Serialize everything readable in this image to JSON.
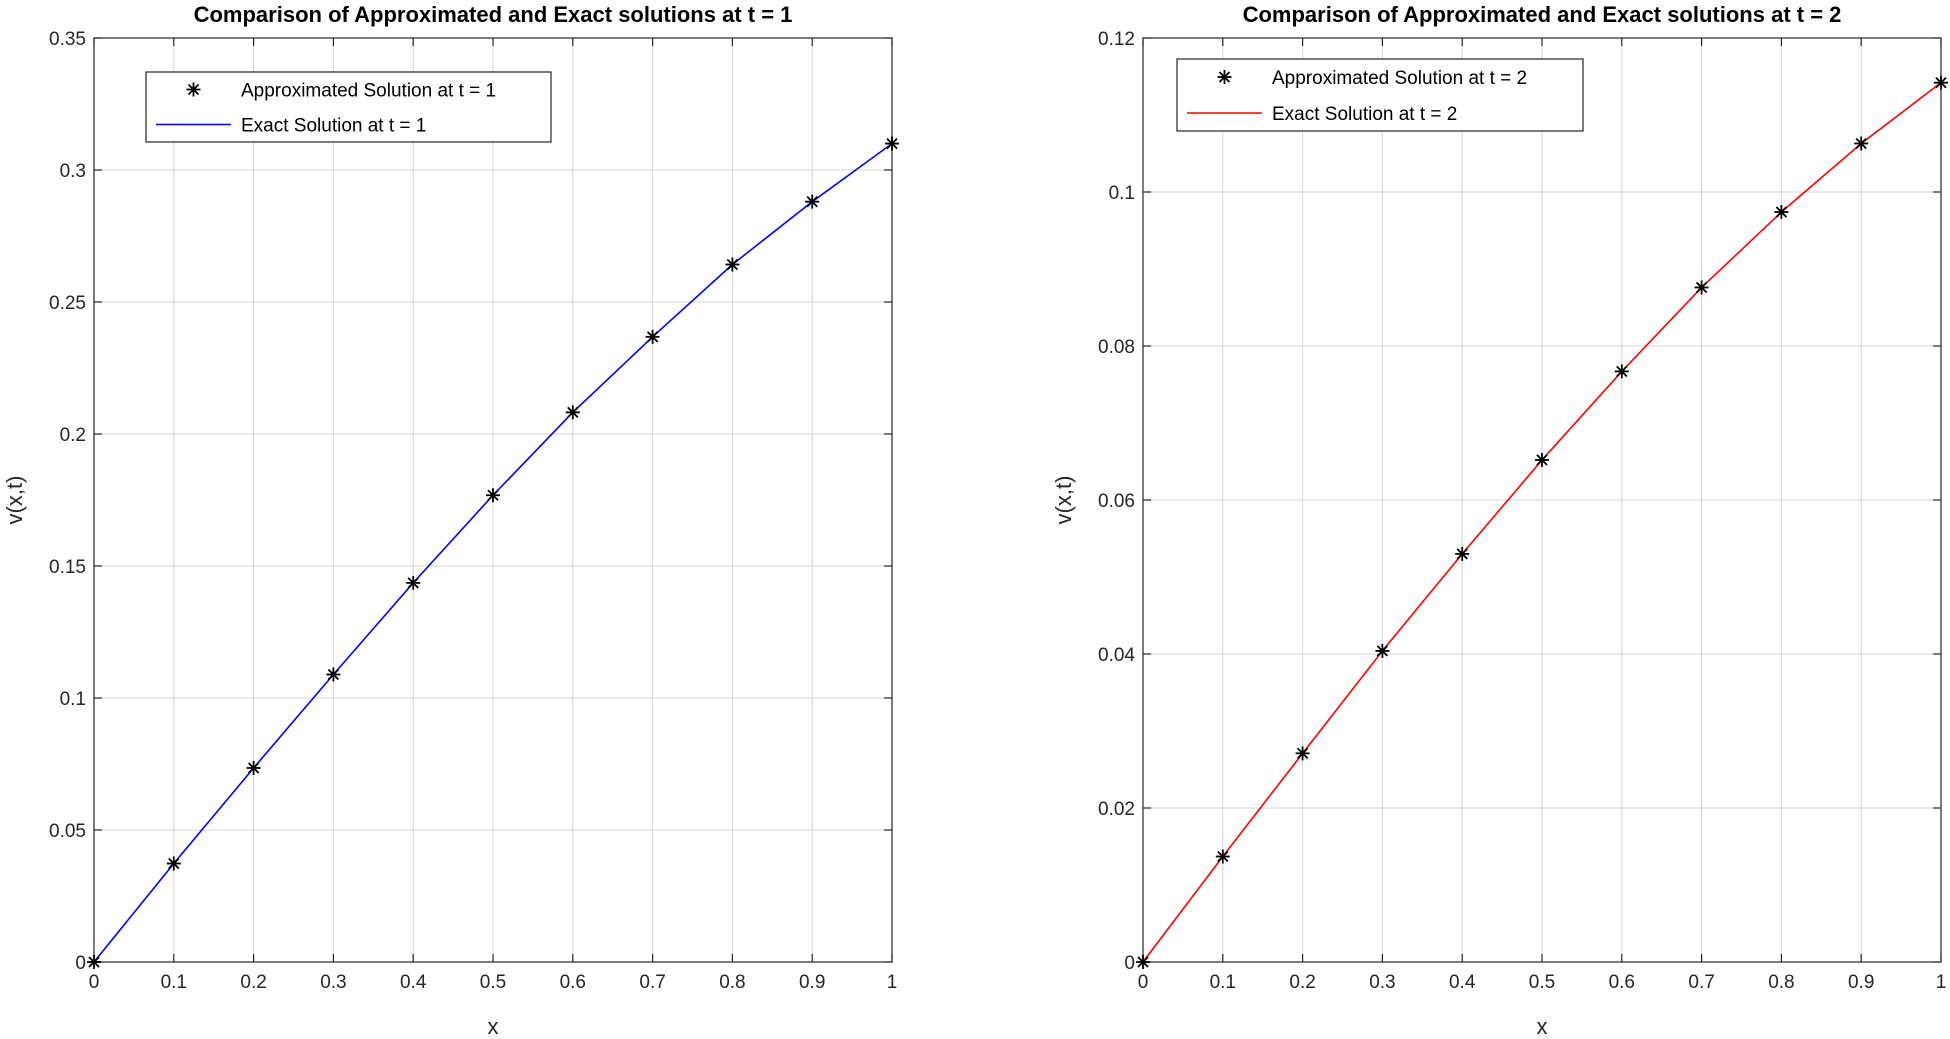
{
  "chart_data": [
    {
      "type": "line",
      "title": "Comparison of Approximated and Exact solutions at t = 1",
      "xlabel": "x",
      "ylabel": "v(x,t)",
      "xlim": [
        0,
        1
      ],
      "ylim": [
        0,
        0.35
      ],
      "xticks": [
        "0",
        "0.1",
        "0.2",
        "0.3",
        "0.4",
        "0.5",
        "0.6",
        "0.7",
        "0.8",
        "0.9",
        "1"
      ],
      "yticks": [
        "0",
        "0.05",
        "0.1",
        "0.15",
        "0.2",
        "0.25",
        "0.3",
        "0.35"
      ],
      "grid": true,
      "legend_position": "top-left",
      "series": [
        {
          "name": "Approximated Solution at t = 1",
          "style": "markers",
          "marker": "star",
          "color": "#000000",
          "x": [
            0,
            0.1,
            0.2,
            0.3,
            0.4,
            0.5,
            0.6,
            0.7,
            0.8,
            0.9,
            1.0
          ],
          "y": [
            0,
            0.0373,
            0.0735,
            0.1089,
            0.1436,
            0.1768,
            0.2082,
            0.2368,
            0.2642,
            0.288,
            0.31
          ]
        },
        {
          "name": "Exact Solution at t = 1",
          "style": "line",
          "color": "#0000ff",
          "x": [
            0,
            0.1,
            0.2,
            0.3,
            0.4,
            0.5,
            0.6,
            0.7,
            0.8,
            0.9,
            1.0
          ],
          "y": [
            0,
            0.0373,
            0.0735,
            0.1089,
            0.1436,
            0.1768,
            0.2082,
            0.2368,
            0.2642,
            0.288,
            0.31
          ]
        }
      ]
    },
    {
      "type": "line",
      "title": "Comparison of Approximated and Exact solutions at t = 2",
      "xlabel": "x",
      "ylabel": "v(x,t)",
      "xlim": [
        0,
        1
      ],
      "ylim": [
        0,
        0.12
      ],
      "xticks": [
        "0",
        "0.1",
        "0.2",
        "0.3",
        "0.4",
        "0.5",
        "0.6",
        "0.7",
        "0.8",
        "0.9",
        "1"
      ],
      "yticks": [
        "0",
        "0.02",
        "0.04",
        "0.06",
        "0.08",
        "0.1",
        "0.12"
      ],
      "grid": true,
      "legend_position": "top-left",
      "series": [
        {
          "name": "Approximated Solution at t = 2",
          "style": "markers",
          "marker": "star",
          "color": "#000000",
          "x": [
            0,
            0.1,
            0.2,
            0.3,
            0.4,
            0.5,
            0.6,
            0.7,
            0.8,
            0.9,
            1.0
          ],
          "y": [
            0,
            0.0137,
            0.0271,
            0.0404,
            0.053,
            0.0652,
            0.0767,
            0.0876,
            0.0974,
            0.1063,
            0.1142
          ]
        },
        {
          "name": "Exact Solution at t = 2",
          "style": "line",
          "color": "#ff0000",
          "x": [
            0,
            0.1,
            0.2,
            0.3,
            0.4,
            0.5,
            0.6,
            0.7,
            0.8,
            0.9,
            1.0
          ],
          "y": [
            0,
            0.0137,
            0.0271,
            0.0404,
            0.053,
            0.0652,
            0.0767,
            0.0876,
            0.0974,
            0.1063,
            0.1142
          ]
        }
      ]
    }
  ]
}
